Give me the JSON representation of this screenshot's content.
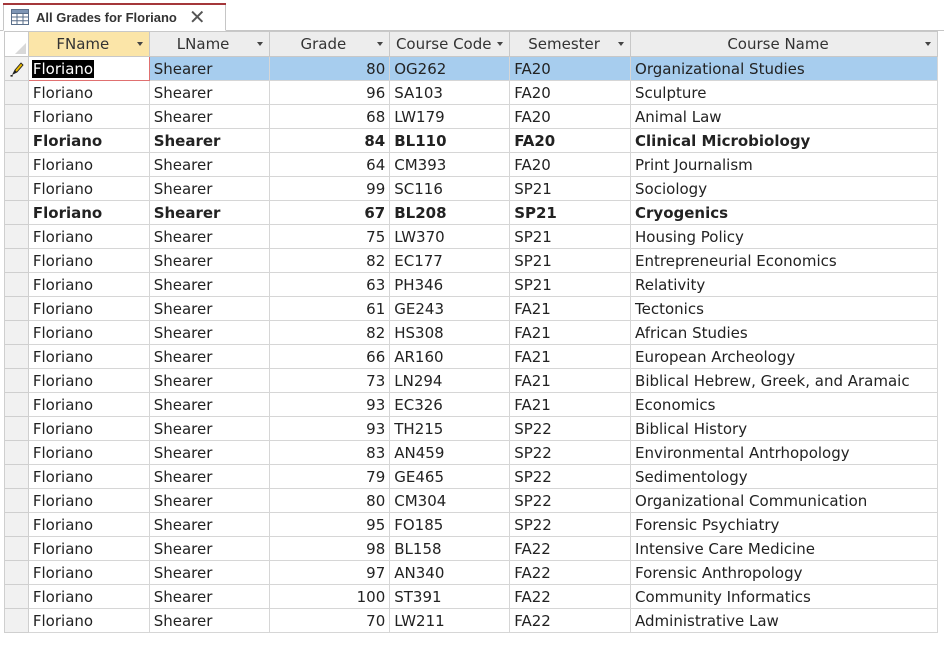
{
  "tab": {
    "title": "All Grades for Floriano",
    "close_glyph": "✕",
    "icon": "table-icon"
  },
  "columns": [
    {
      "label": "FName"
    },
    {
      "label": "LName"
    },
    {
      "label": "Grade"
    },
    {
      "label": "Course Code"
    },
    {
      "label": "Semester"
    },
    {
      "label": "Course Name"
    }
  ],
  "rows": [
    {
      "fname": "Floriano",
      "lname": "Shearer",
      "grade": "80",
      "code": "OG262",
      "semester": "FA20",
      "course": "Organizational Studies",
      "current": true,
      "bold": false
    },
    {
      "fname": "Floriano",
      "lname": "Shearer",
      "grade": "96",
      "code": "SA103",
      "semester": "FA20",
      "course": "Sculpture",
      "current": false,
      "bold": false
    },
    {
      "fname": "Floriano",
      "lname": "Shearer",
      "grade": "68",
      "code": "LW179",
      "semester": "FA20",
      "course": "Animal Law",
      "current": false,
      "bold": false
    },
    {
      "fname": "Floriano",
      "lname": "Shearer",
      "grade": "84",
      "code": "BL110",
      "semester": "FA20",
      "course": "Clinical Microbiology",
      "current": false,
      "bold": true
    },
    {
      "fname": "Floriano",
      "lname": "Shearer",
      "grade": "64",
      "code": "CM393",
      "semester": "FA20",
      "course": "Print Journalism",
      "current": false,
      "bold": false
    },
    {
      "fname": "Floriano",
      "lname": "Shearer",
      "grade": "99",
      "code": "SC116",
      "semester": "SP21",
      "course": "Sociology",
      "current": false,
      "bold": false
    },
    {
      "fname": "Floriano",
      "lname": "Shearer",
      "grade": "67",
      "code": "BL208",
      "semester": "SP21",
      "course": "Cryogenics",
      "current": false,
      "bold": true
    },
    {
      "fname": "Floriano",
      "lname": "Shearer",
      "grade": "75",
      "code": "LW370",
      "semester": "SP21",
      "course": "Housing Policy",
      "current": false,
      "bold": false
    },
    {
      "fname": "Floriano",
      "lname": "Shearer",
      "grade": "82",
      "code": "EC177",
      "semester": "SP21",
      "course": "Entrepreneurial Economics",
      "current": false,
      "bold": false
    },
    {
      "fname": "Floriano",
      "lname": "Shearer",
      "grade": "63",
      "code": "PH346",
      "semester": "SP21",
      "course": "Relativity",
      "current": false,
      "bold": false
    },
    {
      "fname": "Floriano",
      "lname": "Shearer",
      "grade": "61",
      "code": "GE243",
      "semester": "FA21",
      "course": "Tectonics",
      "current": false,
      "bold": false
    },
    {
      "fname": "Floriano",
      "lname": "Shearer",
      "grade": "82",
      "code": "HS308",
      "semester": "FA21",
      "course": "African Studies",
      "current": false,
      "bold": false
    },
    {
      "fname": "Floriano",
      "lname": "Shearer",
      "grade": "66",
      "code": "AR160",
      "semester": "FA21",
      "course": "European Archeology",
      "current": false,
      "bold": false
    },
    {
      "fname": "Floriano",
      "lname": "Shearer",
      "grade": "73",
      "code": "LN294",
      "semester": "FA21",
      "course": "Biblical Hebrew, Greek, and Aramaic",
      "current": false,
      "bold": false
    },
    {
      "fname": "Floriano",
      "lname": "Shearer",
      "grade": "93",
      "code": "EC326",
      "semester": "FA21",
      "course": "Economics",
      "current": false,
      "bold": false
    },
    {
      "fname": "Floriano",
      "lname": "Shearer",
      "grade": "93",
      "code": "TH215",
      "semester": "SP22",
      "course": "Biblical History",
      "current": false,
      "bold": false
    },
    {
      "fname": "Floriano",
      "lname": "Shearer",
      "grade": "83",
      "code": "AN459",
      "semester": "SP22",
      "course": "Environmental Antrhopology",
      "current": false,
      "bold": false
    },
    {
      "fname": "Floriano",
      "lname": "Shearer",
      "grade": "79",
      "code": "GE465",
      "semester": "SP22",
      "course": "Sedimentology",
      "current": false,
      "bold": false
    },
    {
      "fname": "Floriano",
      "lname": "Shearer",
      "grade": "80",
      "code": "CM304",
      "semester": "SP22",
      "course": "Organizational Communication",
      "current": false,
      "bold": false
    },
    {
      "fname": "Floriano",
      "lname": "Shearer",
      "grade": "95",
      "code": "FO185",
      "semester": "SP22",
      "course": "Forensic Psychiatry",
      "current": false,
      "bold": false
    },
    {
      "fname": "Floriano",
      "lname": "Shearer",
      "grade": "98",
      "code": "BL158",
      "semester": "FA22",
      "course": "Intensive Care Medicine",
      "current": false,
      "bold": false
    },
    {
      "fname": "Floriano",
      "lname": "Shearer",
      "grade": "97",
      "code": "AN340",
      "semester": "FA22",
      "course": "Forensic Anthropology",
      "current": false,
      "bold": false
    },
    {
      "fname": "Floriano",
      "lname": "Shearer",
      "grade": "100",
      "code": "ST391",
      "semester": "FA22",
      "course": "Community Informatics",
      "current": false,
      "bold": false
    },
    {
      "fname": "Floriano",
      "lname": "Shearer",
      "grade": "70",
      "code": "LW211",
      "semester": "FA22",
      "course": "Administrative Law",
      "current": false,
      "bold": false
    }
  ],
  "colors": {
    "tab_accent": "#a4373a",
    "current_row": "#a7cdee",
    "first_header": "#fbe5a8",
    "header": "#ededed"
  }
}
